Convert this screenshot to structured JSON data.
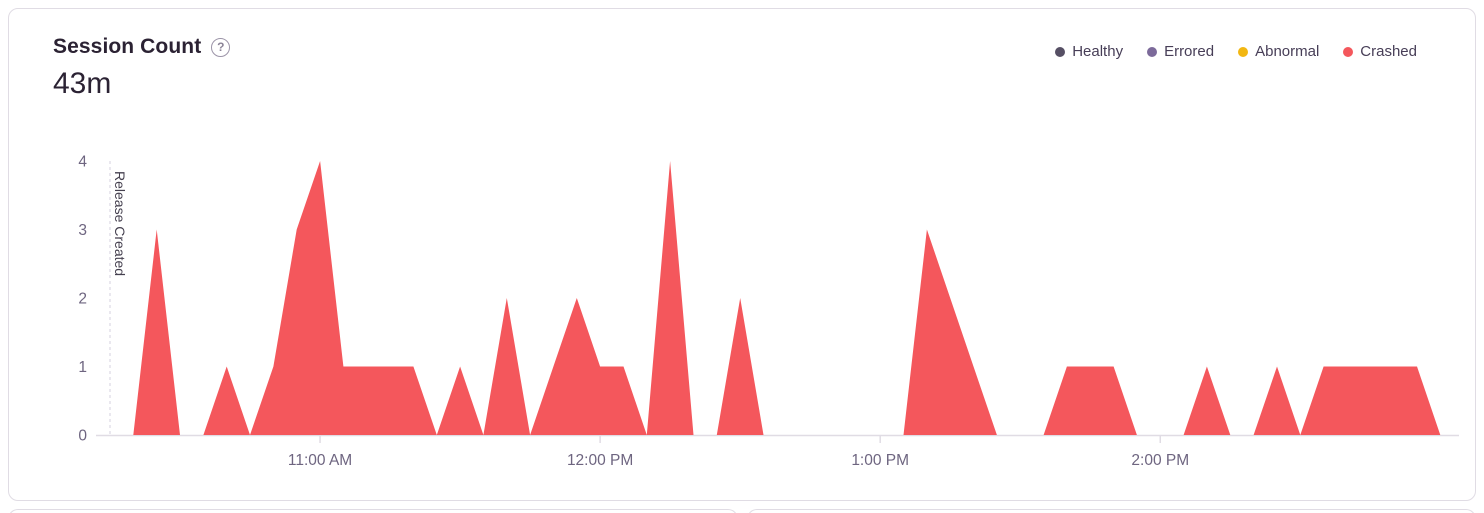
{
  "card": {
    "title": "Session Count",
    "help_icon": "?",
    "total": "43m"
  },
  "legend": {
    "items": [
      {
        "label": "Healthy",
        "color": "#564f64"
      },
      {
        "label": "Errored",
        "color": "#7c6a9a"
      },
      {
        "label": "Abnormal",
        "color": "#f2b712"
      },
      {
        "label": "Crashed",
        "color": "#f4575c"
      }
    ]
  },
  "chart_data": {
    "type": "area",
    "title": "Session Count",
    "total": "43m",
    "legend_position": "top-right",
    "grid": false,
    "ylabel": "",
    "xlabel": "",
    "ylim": [
      0,
      4
    ],
    "yticks": [
      0,
      1,
      2,
      3,
      4
    ],
    "xticks": [
      "11:00 AM",
      "12:00 PM",
      "1:00 PM",
      "2:00 PM"
    ],
    "xlim": [
      "10:12 AM",
      "3:04 PM"
    ],
    "annotation": {
      "label": "Release Created",
      "time": "10:15 AM"
    },
    "axis": {
      "text_color": "#6e6580",
      "line_color": "#e0dce4",
      "annotation_line_color": "#d6d0df",
      "annotation_text_color": "#45404f"
    },
    "series": [
      {
        "name": "Crashed",
        "color": "#f4575c",
        "x": [
          "10:15 AM",
          "10:20 AM",
          "10:25 AM",
          "10:30 AM",
          "10:35 AM",
          "10:40 AM",
          "10:45 AM",
          "10:50 AM",
          "10:55 AM",
          "11:00 AM",
          "11:05 AM",
          "11:10 AM",
          "11:15 AM",
          "11:20 AM",
          "11:25 AM",
          "11:30 AM",
          "11:35 AM",
          "11:40 AM",
          "11:45 AM",
          "11:50 AM",
          "11:55 AM",
          "12:00 PM",
          "12:05 PM",
          "12:10 PM",
          "12:15 PM",
          "12:20 PM",
          "12:25 PM",
          "12:30 PM",
          "12:35 PM",
          "12:40 PM",
          "12:45 PM",
          "12:50 PM",
          "12:55 PM",
          "1:00 PM",
          "1:05 PM",
          "1:10 PM",
          "1:15 PM",
          "1:20 PM",
          "1:25 PM",
          "1:30 PM",
          "1:35 PM",
          "1:40 PM",
          "1:45 PM",
          "1:50 PM",
          "1:55 PM",
          "2:00 PM",
          "2:05 PM",
          "2:10 PM",
          "2:15 PM",
          "2:20 PM",
          "2:25 PM",
          "2:30 PM",
          "2:35 PM",
          "2:40 PM",
          "2:45 PM",
          "2:50 PM",
          "2:55 PM",
          "3:00 PM"
        ],
        "values": [
          0,
          0,
          3,
          0,
          0,
          1,
          0,
          1,
          3,
          4,
          1,
          1,
          1,
          1,
          0,
          1,
          0,
          2,
          0,
          1,
          2,
          1,
          1,
          0,
          4,
          0,
          0,
          2,
          0,
          0,
          0,
          0,
          0,
          0,
          0,
          3,
          2,
          1,
          0,
          0,
          0,
          1,
          1,
          1,
          0,
          0,
          0,
          1,
          0,
          0,
          1,
          0,
          1,
          1,
          1,
          1,
          1,
          0
        ]
      }
    ]
  }
}
